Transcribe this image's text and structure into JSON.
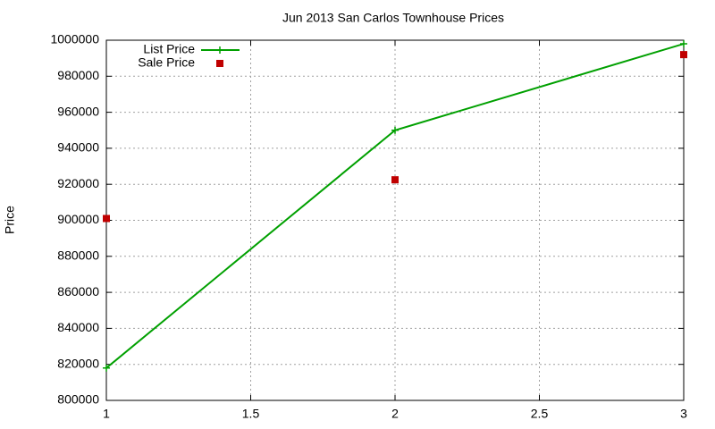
{
  "chart_data": {
    "type": "line",
    "title": "Jun 2013 San Carlos Townhouse Prices",
    "y_label": "Price",
    "x": [
      1,
      2,
      3
    ],
    "series": [
      {
        "name": "List Price",
        "color": "#00a000",
        "style": "linespoints",
        "marker": "plus",
        "values": [
          818000,
          950000,
          998000
        ]
      },
      {
        "name": "Sale Price",
        "color": "#c00000",
        "style": "points",
        "marker": "square",
        "values": [
          901000,
          922500,
          992000
        ]
      }
    ],
    "xlim": [
      1,
      3
    ],
    "xticks": [
      1,
      1.5,
      2,
      2.5,
      3
    ],
    "ylim": [
      800000,
      1000000
    ],
    "yticks": [
      800000,
      820000,
      840000,
      860000,
      880000,
      900000,
      920000,
      940000,
      960000,
      980000,
      1000000
    ],
    "grid": true,
    "legend": "top-left"
  }
}
